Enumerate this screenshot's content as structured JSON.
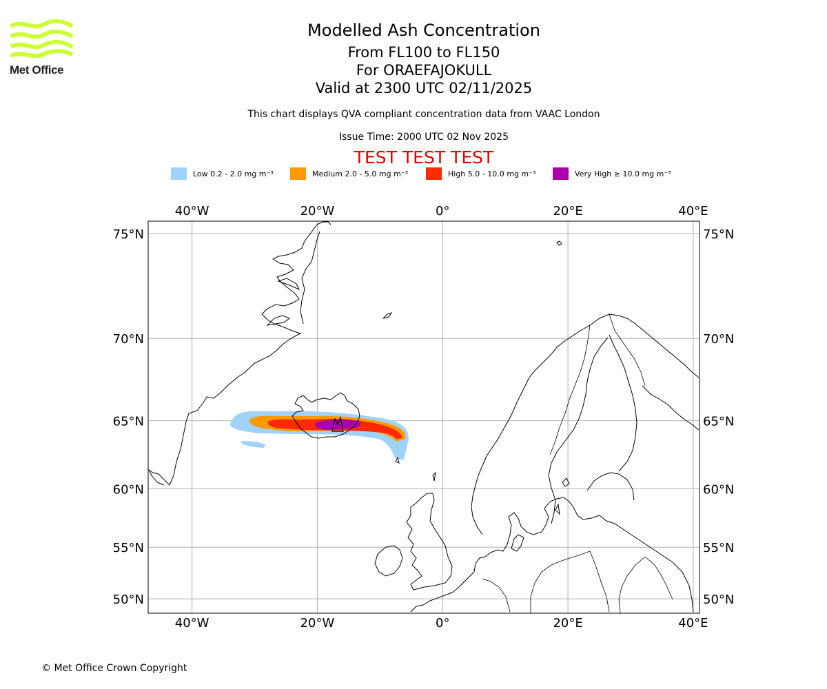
{
  "logo": {
    "text": "Met Office",
    "colors": {
      "waves": "#ccff33",
      "text": "#222222"
    }
  },
  "title": "Modelled Ash Concentration",
  "subtitle_lines": [
    "From FL100 to FL150",
    "For ORAEFAJOKULL",
    "Valid at 2300 UTC 02/11/2025"
  ],
  "note": "This chart displays QVA compliant concentration data from VAAC London",
  "issue_time": "Issue Time: 2000 UTC 02 Nov 2025",
  "test_banner": "TEST TEST TEST",
  "legend": [
    {
      "label": "Low 0.2 - 2.0 mg m⁻³",
      "color": "#a0d2fa"
    },
    {
      "label": "Medium 2.0 - 5.0 mg m⁻³",
      "color": "#ff9900"
    },
    {
      "label": "High 5.0 - 10.0 mg m⁻³",
      "color": "#ff2a00"
    },
    {
      "label": "Very High  ≥  10.0 mg m⁻³",
      "color": "#aa00aa"
    }
  ],
  "map": {
    "projection": "plate-carree-like",
    "lon_range": [
      -47,
      41
    ],
    "lat_range": [
      48.5,
      75.5
    ],
    "lon_ticks": [
      {
        "value": -40,
        "label": "40°W"
      },
      {
        "value": -20,
        "label": "20°W"
      },
      {
        "value": 0,
        "label": "0°"
      },
      {
        "value": 20,
        "label": "20°E"
      },
      {
        "value": 40,
        "label": "40°E"
      }
    ],
    "lat_ticks": [
      {
        "value": 75,
        "label": "75°N"
      },
      {
        "value": 70,
        "label": "70°N"
      },
      {
        "value": 65,
        "label": "65°N"
      },
      {
        "value": 60,
        "label": "60°N"
      },
      {
        "value": 55,
        "label": "55°N"
      },
      {
        "value": 50,
        "label": "50°N"
      }
    ],
    "grid": true,
    "volcano": "ORAEFAJOKULL",
    "ash_plume_extent": {
      "low": {
        "lon_range": [
          -33.5,
          -5.5
        ],
        "lat_range": [
          62.8,
          65.2
        ]
      },
      "medium": {
        "lon_range": [
          -30.5,
          -6.5
        ],
        "lat_range": [
          63.9,
          65.0
        ]
      },
      "high": {
        "lon_range": [
          -28,
          -7
        ],
        "lat_range": [
          63.95,
          64.8
        ]
      },
      "very_high": {
        "lon_range": [
          -20,
          -12.5
        ],
        "lat_range": [
          64.1,
          64.75
        ]
      }
    }
  },
  "copyright": "© Met Office Crown Copyright"
}
